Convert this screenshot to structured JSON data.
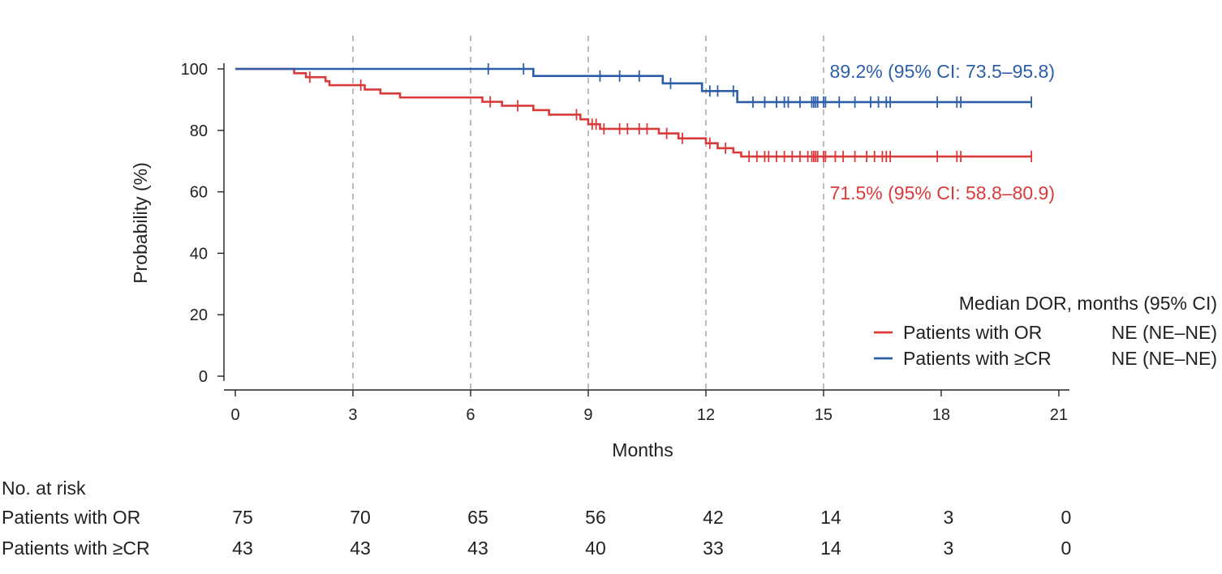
{
  "chart_data": {
    "type": "line",
    "subtype": "kaplan-meier",
    "title": "",
    "xlabel": "Months",
    "ylabel": "Probability (%)",
    "xlim": [
      0,
      21
    ],
    "ylim": [
      0,
      100
    ],
    "x_ticks": [
      0,
      3,
      6,
      9,
      12,
      15,
      18,
      21
    ],
    "y_ticks": [
      0,
      20,
      40,
      60,
      80,
      100
    ],
    "grid": {
      "x": "dashed at 3, 6, 9, 12, 15",
      "y": false
    },
    "series": [
      {
        "name": "Patients with OR",
        "color": "#d93b3b",
        "steps": [
          [
            0,
            100
          ],
          [
            1.5,
            98.6
          ],
          [
            1.8,
            97.3
          ],
          [
            2.3,
            96.0
          ],
          [
            2.4,
            94.7
          ],
          [
            3.3,
            93.3
          ],
          [
            3.7,
            92.0
          ],
          [
            4.2,
            90.7
          ],
          [
            6.3,
            89.3
          ],
          [
            6.8,
            88.0
          ],
          [
            7.6,
            86.6
          ],
          [
            8.0,
            85.1
          ],
          [
            8.8,
            83.6
          ],
          [
            9.0,
            82.0
          ],
          [
            9.3,
            80.5
          ],
          [
            10.8,
            79.0
          ],
          [
            11.3,
            77.4
          ],
          [
            12.0,
            75.8
          ],
          [
            12.3,
            74.2
          ],
          [
            12.7,
            72.8
          ],
          [
            12.9,
            71.5
          ],
          [
            20.3,
            71.5
          ]
        ],
        "censor_times": [
          1.9,
          3.2,
          6.5,
          7.2,
          8.7,
          9.1,
          9.2,
          9.4,
          9.8,
          10.0,
          10.3,
          10.5,
          11.0,
          11.4,
          12.1,
          12.5,
          13.1,
          13.3,
          13.5,
          13.6,
          13.8,
          14.0,
          14.2,
          14.4,
          14.6,
          14.7,
          14.75,
          14.8,
          14.85,
          15.0,
          15.05,
          15.3,
          15.5,
          15.8,
          16.1,
          16.3,
          16.5,
          16.6,
          16.7,
          17.9,
          18.4,
          18.5,
          20.3
        ],
        "annotation": "71.5% (95% CI: 58.8–80.9)"
      },
      {
        "name": "Patients with ≥CR",
        "color": "#2c5fa8",
        "steps": [
          [
            0,
            100
          ],
          [
            7.6,
            97.7
          ],
          [
            10.9,
            95.3
          ],
          [
            11.9,
            92.8
          ],
          [
            12.8,
            89.2
          ],
          [
            20.3,
            89.2
          ]
        ],
        "censor_times": [
          6.45,
          7.35,
          9.3,
          9.8,
          10.3,
          11.1,
          12.1,
          12.3,
          12.7,
          13.2,
          13.5,
          13.8,
          14.0,
          14.1,
          14.4,
          14.7,
          14.75,
          14.8,
          14.85,
          15.0,
          15.05,
          15.4,
          15.8,
          16.2,
          16.4,
          16.6,
          16.7,
          17.9,
          18.4,
          18.5,
          20.3
        ],
        "annotation": "89.2% (95% CI: 73.5–95.8)"
      }
    ],
    "legend": {
      "placement": "right",
      "title": "Median DOR, months (95% CI)",
      "entries": [
        {
          "label": "Patients with OR",
          "value": "NE (NE–NE)",
          "color": "#d93b3b"
        },
        {
          "label": "Patients with ≥CR",
          "value": "NE (NE–NE)",
          "color": "#2c5fa8"
        }
      ]
    },
    "risk_table": {
      "title": "No. at risk",
      "times": [
        0,
        3,
        6,
        9,
        12,
        15,
        18,
        21
      ],
      "rows": [
        {
          "label": "Patients with OR",
          "values": [
            "75",
            "70",
            "65",
            "56",
            "42",
            "14",
            "3",
            "0"
          ]
        },
        {
          "label": "Patients with ≥CR",
          "values": [
            "43",
            "43",
            "43",
            "40",
            "33",
            "14",
            "3",
            "0"
          ]
        }
      ]
    }
  }
}
